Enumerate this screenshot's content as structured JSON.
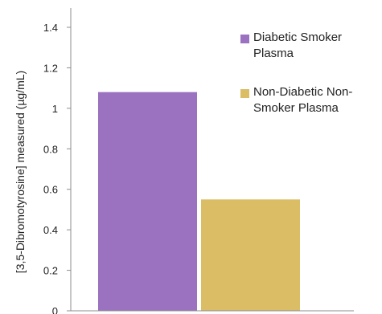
{
  "chart_data": {
    "type": "bar",
    "categories": [
      "Diabetic Smoker Plasma",
      "Non-Diabetic Non-Smoker Plasma"
    ],
    "series": [
      {
        "values": [
          1.08,
          0.55
        ],
        "colors": [
          "#9b72c0",
          "#dbbd65"
        ]
      }
    ],
    "legend": [
      {
        "lines": [
          "Diabetic Smoker",
          "Plasma"
        ],
        "color": "#9b72c0"
      },
      {
        "lines": [
          "Non-Diabetic Non-",
          "Smoker Plasma"
        ],
        "color": "#dbbd65"
      }
    ],
    "ylabel": "[3,5-Dibromotyrosine] measured (µg/mL)",
    "xlabel": "",
    "ylim": [
      0,
      1.4
    ],
    "yticks": [
      0,
      0.2,
      0.4,
      0.6,
      0.8,
      1,
      1.2,
      1.4
    ],
    "ytick_labels": [
      "0",
      "0.2",
      "0.4",
      "0.6",
      "0.8",
      "1",
      "1.2",
      "1.4"
    ],
    "grid": false,
    "legend_position": "top-right"
  }
}
